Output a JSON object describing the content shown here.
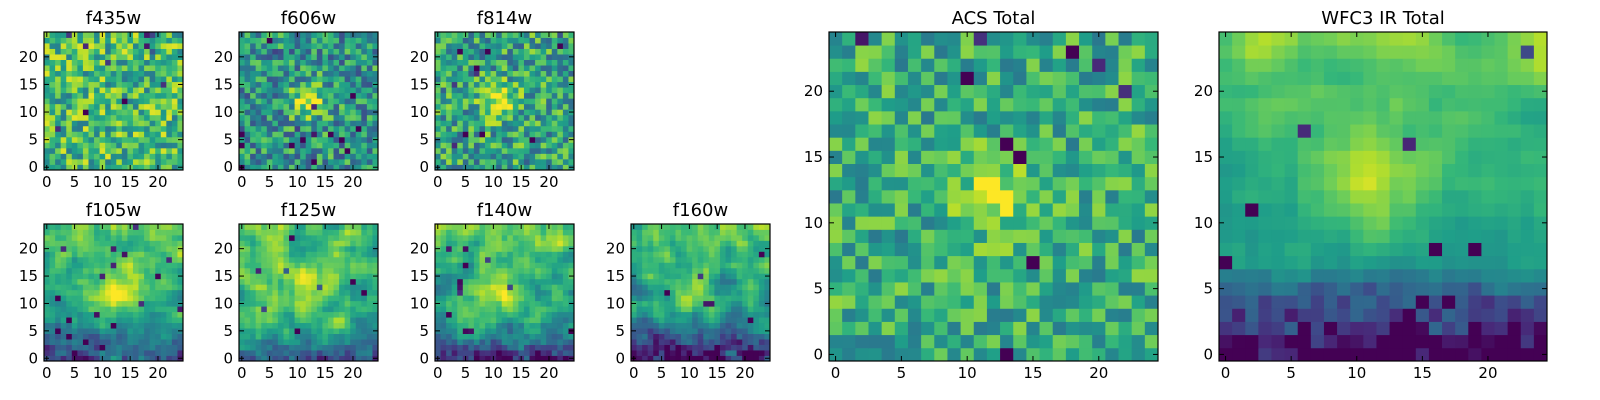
{
  "figure": {
    "colormap": "viridis"
  },
  "chart_data": [
    {
      "type": "heatmap",
      "title": "f435w",
      "grid": [
        25,
        25
      ],
      "xlim": [
        0,
        24
      ],
      "ylim": [
        0,
        24
      ],
      "xticks": [
        "0",
        "5",
        "10",
        "15",
        "20"
      ],
      "yticks": [
        "0",
        "5",
        "10",
        "15",
        "20"
      ],
      "pattern": "noise",
      "mean": 0.68,
      "spread": 0.28,
      "seed": 11
    },
    {
      "type": "heatmap",
      "title": "f606w",
      "grid": [
        25,
        25
      ],
      "xlim": [
        0,
        24
      ],
      "ylim": [
        0,
        24
      ],
      "xticks": [
        "0",
        "5",
        "10",
        "15",
        "20"
      ],
      "yticks": [
        "0",
        "5",
        "10",
        "15",
        "20"
      ],
      "pattern": "noise+blob",
      "mean": 0.52,
      "spread": 0.28,
      "seed": 23,
      "peak": {
        "x": 12,
        "y": 12,
        "sigma": 2.2,
        "amp": 0.45
      }
    },
    {
      "type": "heatmap",
      "title": "f814w",
      "grid": [
        25,
        25
      ],
      "xlim": [
        0,
        24
      ],
      "ylim": [
        0,
        24
      ],
      "xticks": [
        "0",
        "5",
        "10",
        "15",
        "20"
      ],
      "yticks": [
        "0",
        "5",
        "10",
        "15",
        "20"
      ],
      "pattern": "noise+blob",
      "mean": 0.58,
      "spread": 0.28,
      "seed": 37,
      "peak": {
        "x": 11,
        "y": 12,
        "sigma": 2.2,
        "amp": 0.4
      }
    },
    {
      "type": "heatmap",
      "title": "f105w",
      "grid": [
        25,
        25
      ],
      "xlim": [
        0,
        24
      ],
      "ylim": [
        0,
        24
      ],
      "xticks": [
        "0",
        "5",
        "10",
        "15",
        "20"
      ],
      "yticks": [
        "0",
        "5",
        "10",
        "15",
        "20"
      ],
      "pattern": "smooth",
      "mean": 0.6,
      "spread": 0.22,
      "seed": 41,
      "peak": {
        "x": 13,
        "y": 12,
        "sigma": 3.2,
        "amp": 0.4
      },
      "gradient_top": 0.25,
      "bottom_dark": 0.25
    },
    {
      "type": "heatmap",
      "title": "f125w",
      "grid": [
        25,
        25
      ],
      "xlim": [
        0,
        24
      ],
      "ylim": [
        0,
        24
      ],
      "xticks": [
        "0",
        "5",
        "10",
        "15",
        "20"
      ],
      "yticks": [
        "0",
        "5",
        "10",
        "15",
        "20"
      ],
      "pattern": "smooth",
      "mean": 0.66,
      "spread": 0.24,
      "seed": 53,
      "peak": {
        "x": 12,
        "y": 12,
        "sigma": 3.2,
        "amp": 0.2
      },
      "gradient_top": 0.2,
      "bottom_dark": 0.2
    },
    {
      "type": "heatmap",
      "title": "f140w",
      "grid": [
        25,
        25
      ],
      "xlim": [
        0,
        24
      ],
      "ylim": [
        0,
        24
      ],
      "xticks": [
        "0",
        "5",
        "10",
        "15",
        "20"
      ],
      "yticks": [
        "0",
        "5",
        "10",
        "15",
        "20"
      ],
      "pattern": "smooth",
      "mean": 0.62,
      "spread": 0.25,
      "seed": 67,
      "peak": {
        "x": 10,
        "y": 12,
        "sigma": 3.0,
        "amp": 0.3
      },
      "gradient_top": 0.25,
      "bottom_dark": 0.3
    },
    {
      "type": "heatmap",
      "title": "f160w",
      "grid": [
        25,
        25
      ],
      "xlim": [
        0,
        24
      ],
      "ylim": [
        0,
        24
      ],
      "xticks": [
        "0",
        "5",
        "10",
        "15",
        "20"
      ],
      "yticks": [
        "0",
        "5",
        "10",
        "15",
        "20"
      ],
      "pattern": "smooth",
      "mean": 0.56,
      "spread": 0.25,
      "seed": 79,
      "peak": {
        "x": 10,
        "y": 12,
        "sigma": 3.0,
        "amp": 0.3
      },
      "gradient_top": 0.3,
      "bottom_dark": 0.35
    },
    {
      "type": "heatmap",
      "title": "ACS Total",
      "grid": [
        25,
        25
      ],
      "xlim": [
        0,
        24
      ],
      "ylim": [
        0,
        24
      ],
      "xticks": [
        "0",
        "5",
        "10",
        "15",
        "20"
      ],
      "yticks": [
        "0",
        "5",
        "10",
        "15",
        "20"
      ],
      "pattern": "noise+blob",
      "mean": 0.62,
      "spread": 0.22,
      "seed": 97,
      "peak": {
        "x": 12,
        "y": 12,
        "sigma": 1.8,
        "amp": 0.35
      }
    },
    {
      "type": "heatmap",
      "title": "WFC3 IR Total",
      "grid": [
        25,
        25
      ],
      "xlim": [
        0,
        24
      ],
      "ylim": [
        0,
        24
      ],
      "xticks": [
        "0",
        "5",
        "10",
        "15",
        "20"
      ],
      "yticks": [
        "0",
        "5",
        "10",
        "15",
        "20"
      ],
      "pattern": "smooth",
      "mean": 0.6,
      "spread": 0.12,
      "seed": 113,
      "peak": {
        "x": 11,
        "y": 13,
        "sigma": 3.0,
        "amp": 0.25
      },
      "gradient_top": 0.35,
      "bottom_dark": 0.5
    }
  ]
}
